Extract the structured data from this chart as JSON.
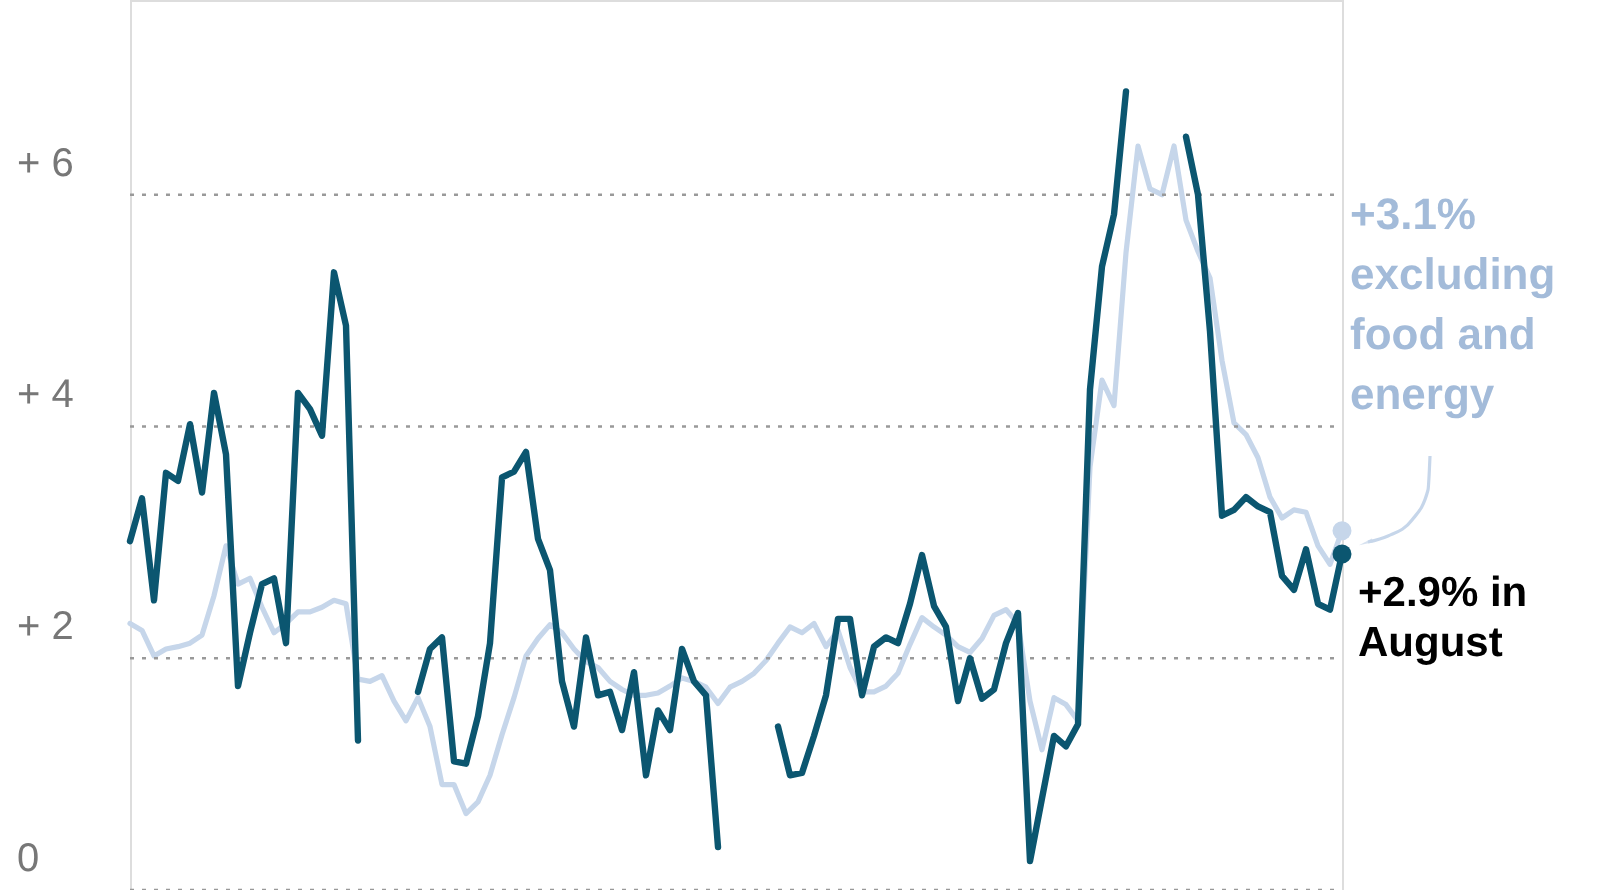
{
  "chart_data": {
    "type": "line",
    "categories": [
      null,
      null,
      null,
      null,
      null,
      null,
      null,
      null,
      null,
      null,
      null,
      null,
      null,
      null,
      null,
      null,
      null,
      null,
      null,
      null,
      null,
      null,
      null,
      null,
      null,
      null,
      null,
      null,
      null,
      null,
      null,
      null,
      null,
      null,
      null,
      null,
      null,
      null,
      null,
      null,
      null,
      null,
      null,
      null,
      null,
      null,
      null,
      null,
      null,
      null,
      null,
      null,
      null,
      null,
      null,
      null,
      null,
      null,
      null,
      null,
      null,
      null,
      null,
      null,
      null,
      null,
      null,
      null,
      null,
      null,
      null,
      null,
      null,
      null,
      null,
      null,
      null,
      null,
      null,
      null,
      null,
      null,
      null,
      null,
      null,
      null,
      null,
      null,
      null,
      null,
      null,
      null,
      null,
      null,
      null,
      null,
      null,
      null,
      null,
      null,
      null,
      null
    ],
    "series": [
      {
        "color": "#c6d6ea",
        "values": [
          2.3,
          2.24,
          2.02,
          2.08,
          2.1,
          2.13,
          2.2,
          2.54,
          2.97,
          2.64,
          2.69,
          2.44,
          2.22,
          2.3,
          2.4,
          2.4,
          2.44,
          2.5,
          2.47,
          1.82,
          1.8,
          1.85,
          1.63,
          1.46,
          1.66,
          1.41,
          0.91,
          0.91,
          0.66,
          0.76,
          0.99,
          1.34,
          1.66,
          2.02,
          2.17,
          2.29,
          2.22,
          2.08,
          1.97,
          1.92,
          1.8,
          1.73,
          1.68,
          1.68,
          1.7,
          1.76,
          1.83,
          1.8,
          1.75,
          1.61,
          1.75,
          1.8,
          1.87,
          1.98,
          2.13,
          2.27,
          2.22,
          2.3,
          2.1,
          2.24,
          1.92,
          1.71,
          1.71,
          1.76,
          1.87,
          2.12,
          2.35,
          2.27,
          2.2,
          2.1,
          2.05,
          2.17,
          2.37,
          2.42,
          2.3,
          1.63,
          1.21,
          1.66,
          1.6,
          1.46,
          3.65,
          4.4,
          4.18,
          5.5,
          6.42,
          6.05,
          6.0,
          6.42,
          5.78,
          5.51,
          5.28,
          4.57,
          4.03,
          3.93,
          3.73,
          3.39,
          3.21,
          3.28,
          3.26,
          2.97,
          2.81,
          3.1
        ]
      },
      {
        "color": "#0b5670",
        "values": [
          3.01,
          3.38,
          2.5,
          3.6,
          3.53,
          4.02,
          3.43,
          4.29,
          3.76,
          1.76,
          2.22,
          2.64,
          2.69,
          2.13,
          4.29,
          4.15,
          3.92,
          5.33,
          4.87,
          1.29,
          null,
          null,
          null,
          null,
          1.71,
          2.08,
          2.18,
          1.11,
          1.09,
          1.5,
          2.13,
          3.56,
          3.61,
          3.78,
          3.03,
          2.76,
          1.8,
          1.41,
          2.18,
          1.68,
          1.71,
          1.38,
          1.88,
          0.99,
          1.55,
          1.38,
          2.08,
          1.8,
          1.68,
          0.37,
          null,
          null,
          null,
          null,
          1.41,
          0.99,
          1.01,
          1.33,
          1.68,
          2.34,
          2.34,
          1.68,
          2.1,
          2.18,
          2.13,
          2.47,
          2.89,
          2.45,
          2.27,
          1.63,
          2.0,
          1.65,
          1.73,
          2.13,
          2.39,
          0.25,
          0.79,
          1.33,
          1.24,
          1.43,
          4.32,
          5.38,
          5.83,
          6.89,
          null,
          null,
          null,
          null,
          6.5,
          6.0,
          4.82,
          3.23,
          3.28,
          3.39,
          3.31,
          3.26,
          2.71,
          2.59,
          2.94,
          2.47,
          2.42,
          2.9
        ]
      }
    ],
    "ylim": [
      0,
      7.68
    ],
    "yticks": [
      0,
      {
        "value": 2,
        "label": "+ 2"
      },
      {
        "value": 4,
        "label": "+ 4"
      },
      {
        "value": 6,
        "label": "+ 6"
      }
    ],
    "grid": "y",
    "annotations": [
      "+3.1%\nexcluding\nfood and\nenergy",
      "+2.9% in\nAugust"
    ]
  }
}
